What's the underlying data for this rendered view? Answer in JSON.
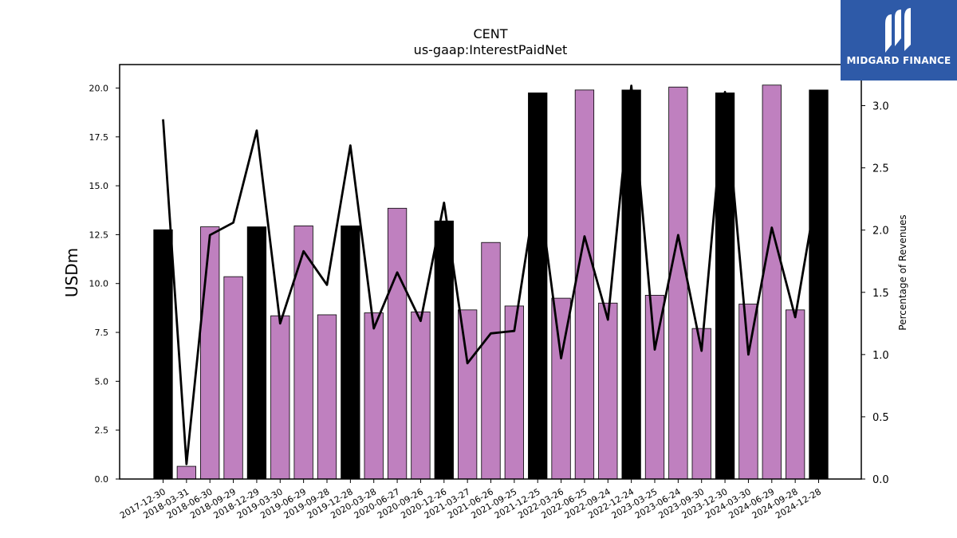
{
  "brand": {
    "name": "MIDGARD FINANCE",
    "bg_color": "#2e5aa8"
  },
  "chart_data": {
    "type": "bar",
    "title": "CENT",
    "subtitle": "us-gaap:InterestPaidNet",
    "ylabel": "USDm",
    "ylabel_right": "Percentage of Revenues",
    "ylim": [
      0,
      21.2
    ],
    "ylim_right": [
      0,
      3.33
    ],
    "yticks": [
      "0.0",
      "2.5",
      "5.0",
      "7.5",
      "10.0",
      "12.5",
      "15.0",
      "17.5",
      "20.0"
    ],
    "yticks_right": [
      "0.0",
      "0.5",
      "1.0",
      "1.5",
      "2.0",
      "2.5",
      "3.0"
    ],
    "bar_color": "#bf80bf",
    "highlight_color": "#000000",
    "line_color": "#000000",
    "categories": [
      "2017-12-30",
      "2018-03-31",
      "2018-06-30",
      "2018-09-29",
      "2018-12-29",
      "2019-03-30",
      "2019-06-29",
      "2019-09-28",
      "2019-12-28",
      "2020-03-28",
      "2020-06-27",
      "2020-09-26",
      "2020-12-26",
      "2021-03-27",
      "2021-06-26",
      "2021-09-25",
      "2021-12-25",
      "2022-03-26",
      "2022-06-25",
      "2022-09-24",
      "2022-12-24",
      "2023-03-25",
      "2023-06-24",
      "2023-09-30",
      "2023-12-30",
      "2024-03-30",
      "2024-06-29",
      "2024-09-28",
      "2024-12-28"
    ],
    "series": [
      {
        "type": "bar",
        "values": [
          12.75,
          0.65,
          12.9,
          10.35,
          12.9,
          8.35,
          12.95,
          8.4,
          12.95,
          8.5,
          13.85,
          8.55,
          13.2,
          8.65,
          12.1,
          8.85,
          19.75,
          9.25,
          19.9,
          9.0,
          19.9,
          9.4,
          20.05,
          7.7,
          19.75,
          8.95,
          20.15,
          8.65,
          19.9
        ],
        "highlight": [
          true,
          false,
          false,
          false,
          true,
          false,
          false,
          false,
          true,
          false,
          false,
          false,
          true,
          false,
          false,
          false,
          true,
          false,
          false,
          false,
          true,
          false,
          false,
          false,
          true,
          false,
          false,
          false,
          true
        ]
      },
      {
        "type": "line",
        "axis": "right",
        "values": [
          2.89,
          0.12,
          1.96,
          2.06,
          2.8,
          1.25,
          1.83,
          1.56,
          2.68,
          1.21,
          1.66,
          1.27,
          2.22,
          0.93,
          1.17,
          1.19,
          2.4,
          0.97,
          1.95,
          1.28,
          3.16,
          1.04,
          1.96,
          1.03,
          3.11,
          1.0,
          2.02,
          1.3,
          2.4
        ]
      }
    ]
  }
}
